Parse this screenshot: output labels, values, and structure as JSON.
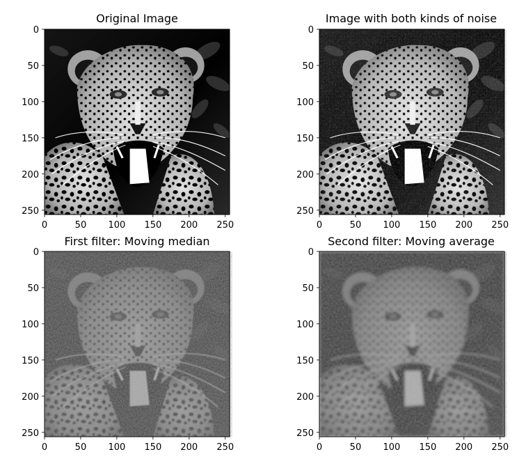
{
  "figure": {
    "panels": [
      {
        "title": "Original Image",
        "image_content": "grayscale photo of a leopard, head and shoulders, mouth open, on a dark background",
        "noise": "none",
        "brightness": 1.0,
        "contrast": 1.25,
        "xticks": [
          "0",
          "50",
          "100",
          "150",
          "200",
          "250"
        ],
        "yticks": [
          "0",
          "50",
          "100",
          "150",
          "200",
          "250"
        ]
      },
      {
        "title": "Image with both kinds of noise",
        "image_content": "same leopard photo with salt-and-pepper and gaussian noise",
        "noise": "salt-pepper+gaussian",
        "brightness": 1.05,
        "contrast": 1.2,
        "xticks": [
          "0",
          "50",
          "100",
          "150",
          "200",
          "250"
        ],
        "yticks": [
          "0",
          "50",
          "100",
          "150",
          "200",
          "250"
        ]
      },
      {
        "title": "First filter: Moving median",
        "image_content": "noisy leopard photo after moving median filter, low contrast, blotchy",
        "noise": "median-filtered",
        "brightness": 0.85,
        "contrast": 0.7,
        "xticks": [
          "0",
          "50",
          "100",
          "150",
          "200",
          "250"
        ],
        "yticks": [
          "0",
          "50",
          "100",
          "150",
          "200",
          "250"
        ]
      },
      {
        "title": "Second filter: Moving average",
        "image_content": "leopard photo after moving average filter, smooth and blurred",
        "noise": "average-filtered",
        "brightness": 0.85,
        "contrast": 0.7,
        "xticks": [
          "0",
          "50",
          "100",
          "150",
          "200",
          "250"
        ],
        "yticks": [
          "0",
          "50",
          "100",
          "150",
          "200",
          "250"
        ]
      }
    ]
  }
}
